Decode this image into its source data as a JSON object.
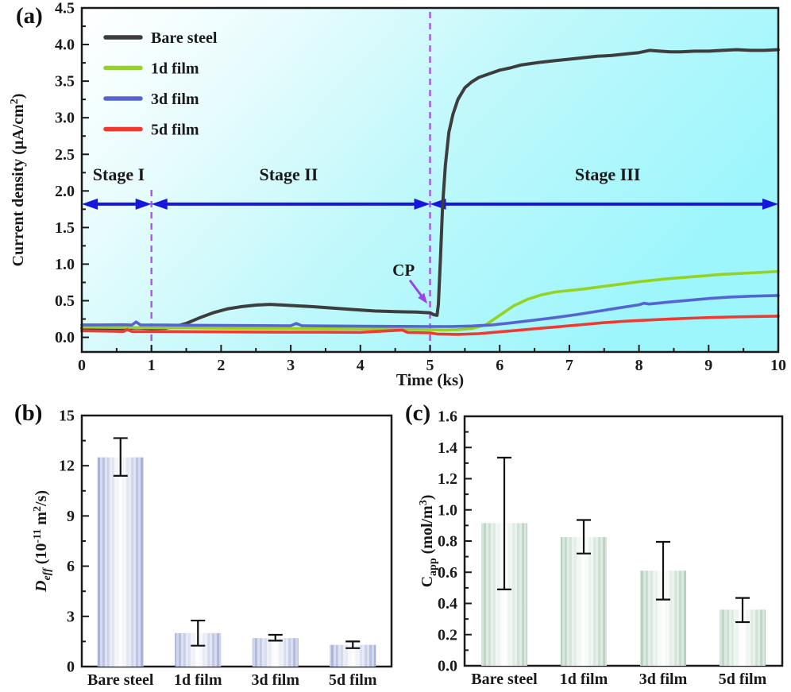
{
  "colors": {
    "frame": "#1a1a1a",
    "text": "#1a1a1a",
    "stage_arrow": "#1616dd",
    "dashed_line": "#a855ec",
    "cp_annotation": "#9a44e8",
    "error_bar": "#111111"
  },
  "chart_data": [
    {
      "id": "a",
      "type": "line",
      "panel_label": "(a)",
      "xlabel": "Time (ks)",
      "ylabel_rich": [
        {
          "t": "Current density (μA/cm"
        },
        {
          "t": "2",
          "sup": 1
        },
        {
          "t": ")"
        }
      ],
      "xlim": [
        0,
        10
      ],
      "ylim": [
        -0.2,
        4.5
      ],
      "xticks": [
        0,
        1,
        2,
        3,
        4,
        5,
        6,
        7,
        8,
        9,
        10
      ],
      "yticks": [
        0,
        0.5,
        1,
        1.5,
        2,
        2.5,
        3,
        3.5,
        4,
        4.5
      ],
      "ytick_decimals": 1,
      "grid": false,
      "legend_position": "top-left",
      "background_gradient": [
        "#ffffff",
        "#e9fcfd",
        "#bdf8fb",
        "#9df6fc"
      ],
      "series": [
        {
          "name": "Bare steel",
          "color": "#3d3d3d",
          "width": 4,
          "points": [
            [
              0,
              0.13
            ],
            [
              0.2,
              0.12
            ],
            [
              0.4,
              0.125
            ],
            [
              0.6,
              0.12
            ],
            [
              0.8,
              0.13
            ],
            [
              1.0,
              0.12
            ],
            [
              1.2,
              0.125
            ],
            [
              1.35,
              0.15
            ],
            [
              1.5,
              0.19
            ],
            [
              1.7,
              0.27
            ],
            [
              1.9,
              0.34
            ],
            [
              2.1,
              0.39
            ],
            [
              2.3,
              0.42
            ],
            [
              2.5,
              0.44
            ],
            [
              2.7,
              0.45
            ],
            [
              2.9,
              0.44
            ],
            [
              3.1,
              0.43
            ],
            [
              3.3,
              0.42
            ],
            [
              3.6,
              0.4
            ],
            [
              3.9,
              0.38
            ],
            [
              4.2,
              0.36
            ],
            [
              4.5,
              0.35
            ],
            [
              4.8,
              0.345
            ],
            [
              5.0,
              0.335
            ],
            [
              5.05,
              0.31
            ],
            [
              5.1,
              0.3
            ],
            [
              5.12,
              0.45
            ],
            [
              5.15,
              1.1
            ],
            [
              5.18,
              1.8
            ],
            [
              5.22,
              2.35
            ],
            [
              5.27,
              2.8
            ],
            [
              5.33,
              3.05
            ],
            [
              5.4,
              3.25
            ],
            [
              5.5,
              3.41
            ],
            [
              5.6,
              3.49
            ],
            [
              5.7,
              3.55
            ],
            [
              5.85,
              3.6
            ],
            [
              6.0,
              3.65
            ],
            [
              6.15,
              3.68
            ],
            [
              6.3,
              3.72
            ],
            [
              6.45,
              3.74
            ],
            [
              6.6,
              3.76
            ],
            [
              6.8,
              3.78
            ],
            [
              7.0,
              3.8
            ],
            [
              7.2,
              3.82
            ],
            [
              7.4,
              3.84
            ],
            [
              7.6,
              3.85
            ],
            [
              7.8,
              3.87
            ],
            [
              8.0,
              3.89
            ],
            [
              8.15,
              3.92
            ],
            [
              8.3,
              3.91
            ],
            [
              8.45,
              3.9
            ],
            [
              8.6,
              3.9
            ],
            [
              8.8,
              3.91
            ],
            [
              9.0,
              3.91
            ],
            [
              9.2,
              3.92
            ],
            [
              9.4,
              3.93
            ],
            [
              9.6,
              3.92
            ],
            [
              9.8,
              3.92
            ],
            [
              10,
              3.93
            ]
          ]
        },
        {
          "name": "1d film",
          "color": "#95d320",
          "width": 3.6,
          "points": [
            [
              0,
              0.14
            ],
            [
              0.5,
              0.135
            ],
            [
              1,
              0.13
            ],
            [
              1.5,
              0.13
            ],
            [
              2,
              0.125
            ],
            [
              2.5,
              0.12
            ],
            [
              3,
              0.12
            ],
            [
              3.5,
              0.118
            ],
            [
              4,
              0.115
            ],
            [
              4.5,
              0.11
            ],
            [
              5,
              0.105
            ],
            [
              5.2,
              0.1
            ],
            [
              5.4,
              0.105
            ],
            [
              5.6,
              0.12
            ],
            [
              5.8,
              0.17
            ],
            [
              6.0,
              0.3
            ],
            [
              6.2,
              0.43
            ],
            [
              6.4,
              0.52
            ],
            [
              6.6,
              0.58
            ],
            [
              6.8,
              0.62
            ],
            [
              7.2,
              0.66
            ],
            [
              7.6,
              0.71
            ],
            [
              8.0,
              0.76
            ],
            [
              8.4,
              0.8
            ],
            [
              8.8,
              0.83
            ],
            [
              9.2,
              0.86
            ],
            [
              9.6,
              0.88
            ],
            [
              10,
              0.9
            ]
          ]
        },
        {
          "name": "3d film",
          "color": "#5663d2",
          "width": 3.6,
          "points": [
            [
              0,
              0.17
            ],
            [
              0.3,
              0.17
            ],
            [
              0.6,
              0.172
            ],
            [
              0.72,
              0.168
            ],
            [
              0.78,
              0.21
            ],
            [
              0.84,
              0.17
            ],
            [
              1.2,
              0.168
            ],
            [
              1.6,
              0.165
            ],
            [
              2.0,
              0.162
            ],
            [
              2.5,
              0.16
            ],
            [
              3.0,
              0.158
            ],
            [
              3.08,
              0.19
            ],
            [
              3.16,
              0.158
            ],
            [
              3.6,
              0.155
            ],
            [
              4.0,
              0.152
            ],
            [
              4.5,
              0.15
            ],
            [
              5.0,
              0.147
            ],
            [
              5.3,
              0.147
            ],
            [
              5.6,
              0.155
            ],
            [
              5.9,
              0.17
            ],
            [
              6.2,
              0.2
            ],
            [
              6.5,
              0.235
            ],
            [
              6.8,
              0.27
            ],
            [
              7.1,
              0.31
            ],
            [
              7.4,
              0.355
            ],
            [
              7.7,
              0.4
            ],
            [
              8.0,
              0.445
            ],
            [
              8.07,
              0.465
            ],
            [
              8.15,
              0.455
            ],
            [
              8.4,
              0.48
            ],
            [
              8.7,
              0.505
            ],
            [
              9.0,
              0.53
            ],
            [
              9.3,
              0.55
            ],
            [
              9.6,
              0.562
            ],
            [
              10,
              0.572
            ]
          ]
        },
        {
          "name": "5d film",
          "color": "#ee3a30",
          "width": 3.6,
          "points": [
            [
              0,
              0.09
            ],
            [
              0.3,
              0.085
            ],
            [
              0.6,
              0.08
            ],
            [
              0.65,
              0.105
            ],
            [
              0.72,
              0.08
            ],
            [
              1.0,
              0.08
            ],
            [
              1.5,
              0.078
            ],
            [
              2.0,
              0.075
            ],
            [
              2.5,
              0.072
            ],
            [
              3.0,
              0.07
            ],
            [
              3.5,
              0.07
            ],
            [
              4.0,
              0.068
            ],
            [
              4.6,
              0.1
            ],
            [
              4.68,
              0.066
            ],
            [
              5.0,
              0.06
            ],
            [
              5.1,
              0.045
            ],
            [
              5.4,
              0.04
            ],
            [
              5.7,
              0.05
            ],
            [
              6.0,
              0.075
            ],
            [
              6.3,
              0.1
            ],
            [
              6.6,
              0.125
            ],
            [
              6.9,
              0.15
            ],
            [
              7.2,
              0.175
            ],
            [
              7.5,
              0.2
            ],
            [
              7.8,
              0.22
            ],
            [
              8.1,
              0.235
            ],
            [
              8.5,
              0.253
            ],
            [
              8.9,
              0.267
            ],
            [
              9.3,
              0.278
            ],
            [
              9.7,
              0.285
            ],
            [
              10,
              0.29
            ]
          ]
        }
      ],
      "stages": [
        {
          "label": "Stage I",
          "from_x": 0,
          "to_x": 1,
          "label_x": 0.53
        },
        {
          "label": "Stage II",
          "from_x": 1,
          "to_x": 5,
          "label_x": 2.97
        },
        {
          "label": "Stage III",
          "from_x": 5,
          "to_x": 10,
          "label_x": 7.55
        }
      ],
      "stage_arrow_y": 1.82,
      "stage_label_y": 2.22,
      "dashed_lines": [
        {
          "x": 1,
          "y_to": 2.05
        },
        {
          "x": 5,
          "y_to": 4.5
        }
      ],
      "cp_annotation": {
        "label": "CP",
        "text_at": [
          4.62,
          0.92
        ],
        "arrow_from": [
          4.71,
          0.78
        ],
        "arrow_to": [
          4.96,
          0.46
        ]
      }
    },
    {
      "id": "b",
      "type": "bar",
      "panel_label": "(b)",
      "ylabel_rich": [
        {
          "t": "D",
          "it": 1
        },
        {
          "t": "eff",
          "it": 1,
          "sub": 1
        },
        {
          "t": " (10"
        },
        {
          "t": "-11",
          "sup": 1
        },
        {
          "t": " m"
        },
        {
          "t": "2",
          "sup": 1
        },
        {
          "t": "/s)"
        }
      ],
      "categories": [
        "Bare steel",
        "1d film",
        "3d film",
        "5d film"
      ],
      "values": [
        12.5,
        2.0,
        1.7,
        1.3
      ],
      "error_low": [
        11.4,
        1.25,
        1.55,
        1.1
      ],
      "error_high": [
        13.65,
        2.75,
        1.9,
        1.5
      ],
      "ylim": [
        0,
        15
      ],
      "yticks": [
        0,
        3,
        6,
        9,
        12,
        15
      ],
      "ytick_decimals": 0,
      "grid": false,
      "bar_colors": {
        "edge": "#a2addb",
        "center": "#ffffff"
      }
    },
    {
      "id": "c",
      "type": "bar",
      "panel_label": "(c)",
      "ylabel_rich": [
        {
          "t": "C"
        },
        {
          "t": "app",
          "sub": 1
        },
        {
          "t": " (mol/m"
        },
        {
          "t": "3",
          "sup": 1
        },
        {
          "t": ")"
        }
      ],
      "categories": [
        "Bare steel",
        "1d film",
        "3d film",
        "5d film"
      ],
      "values": [
        0.915,
        0.825,
        0.61,
        0.36
      ],
      "error_low": [
        0.49,
        0.72,
        0.425,
        0.28
      ],
      "error_high": [
        1.335,
        0.935,
        0.795,
        0.435
      ],
      "ylim": [
        0,
        1.6
      ],
      "yticks": [
        0,
        0.2,
        0.4,
        0.6,
        0.8,
        1.0,
        1.2,
        1.4,
        1.6
      ],
      "ytick_decimals": 1,
      "grid": false,
      "bar_colors": {
        "edge": "#b0d0ba",
        "center": "#ffffff"
      }
    }
  ]
}
